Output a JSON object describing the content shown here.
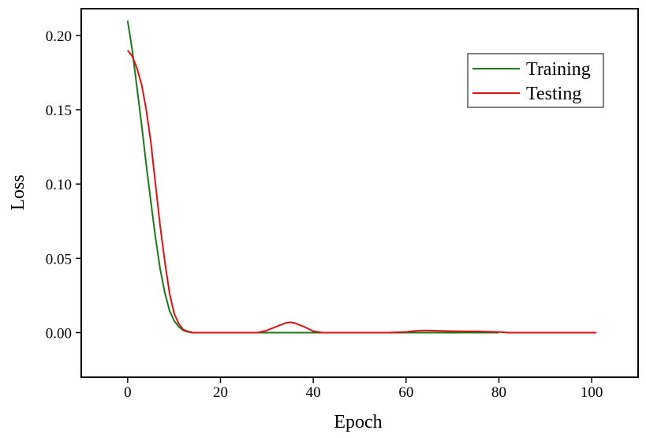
{
  "chart_data": {
    "type": "line",
    "title": "",
    "xlabel": "Epoch",
    "ylabel": "Loss",
    "xlim": [
      -10,
      110
    ],
    "ylim": [
      -0.03,
      0.218
    ],
    "xticks": [
      "0",
      "20",
      "40",
      "60",
      "80",
      "100"
    ],
    "yticks": [
      "0.00",
      "0.05",
      "0.10",
      "0.15",
      "0.20"
    ],
    "grid": false,
    "legend": "top-right",
    "series": [
      {
        "name": "Training",
        "color": "#1a7a1a",
        "x": [
          0,
          1,
          2,
          3,
          4,
          5,
          6,
          7,
          8,
          9,
          10,
          11,
          12,
          13,
          14,
          20,
          40,
          60,
          80
        ],
        "y": [
          0.21,
          0.19,
          0.165,
          0.14,
          0.113,
          0.088,
          0.064,
          0.043,
          0.027,
          0.015,
          0.008,
          0.004,
          0.0015,
          0.0005,
          0.0,
          0.0,
          0.0,
          0.0,
          0.0
        ]
      },
      {
        "name": "Testing",
        "color": "#dd1111",
        "x": [
          0,
          1,
          2,
          3,
          4,
          5,
          6,
          7,
          8,
          9,
          10,
          11,
          12,
          13,
          14,
          20,
          28,
          30,
          32,
          34,
          35,
          36,
          38,
          40,
          42,
          50,
          56,
          60,
          62,
          64,
          70,
          76,
          80,
          82,
          101
        ],
        "y": [
          0.19,
          0.186,
          0.178,
          0.167,
          0.15,
          0.128,
          0.1,
          0.072,
          0.048,
          0.027,
          0.013,
          0.006,
          0.002,
          0.0008,
          0.0,
          0.0,
          0.0,
          0.0015,
          0.004,
          0.0065,
          0.007,
          0.0065,
          0.004,
          0.001,
          0.0,
          0.0,
          0.0,
          0.0005,
          0.0012,
          0.0015,
          0.001,
          0.0008,
          0.0005,
          0.0,
          0.0
        ]
      }
    ]
  }
}
